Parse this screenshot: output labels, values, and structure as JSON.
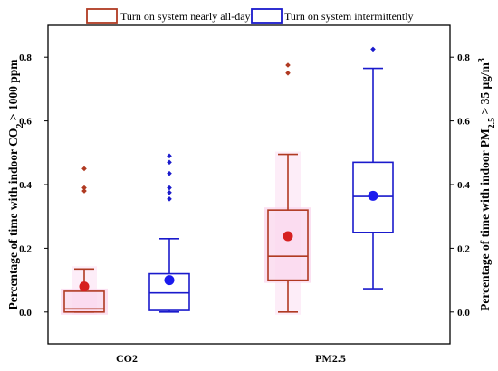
{
  "chart_data": {
    "type": "box",
    "categories": [
      "CO2",
      "PM2.5"
    ],
    "ylabel_left": {
      "main": "Percentage of time with indoor CO",
      "sub": "2",
      "tail": " > 1000 ppm"
    },
    "ylabel_right": {
      "main": "Percentage of time with indoor PM",
      "sub": "2.5",
      "tail": " > 35 μg/m",
      "sup": "3"
    },
    "ylim": [
      -0.1,
      0.9
    ],
    "yticks": [
      0.0,
      0.2,
      0.4,
      0.6,
      0.8
    ],
    "ytick_labels": [
      "0.0",
      "0.2",
      "0.4",
      "0.6",
      "0.8"
    ],
    "legend_position": "top",
    "series": [
      {
        "name": "Turn on system nearly all-day",
        "color": "#b03a22",
        "mean_color": "#d62020",
        "boxes": [
          {
            "category": "CO2",
            "whisker_low": 0.0,
            "q1": 0.0,
            "median": 0.01,
            "q3": 0.065,
            "whisker_high": 0.135,
            "mean": 0.08,
            "outliers": [
              0.38,
              0.39,
              0.45
            ]
          },
          {
            "category": "PM2.5",
            "whisker_low": 0.0,
            "q1": 0.1,
            "median": 0.175,
            "q3": 0.32,
            "whisker_high": 0.495,
            "mean": 0.238,
            "outliers": [
              0.75,
              0.775
            ]
          }
        ]
      },
      {
        "name": "Turn on system intermittently",
        "color": "#1a1acc",
        "mean_color": "#1a1aee",
        "boxes": [
          {
            "category": "CO2",
            "whisker_low": 0.0,
            "q1": 0.005,
            "median": 0.06,
            "q3": 0.12,
            "whisker_high": 0.23,
            "mean": 0.1,
            "outliers": [
              0.355,
              0.375,
              0.39,
              0.435,
              0.47,
              0.49
            ]
          },
          {
            "category": "PM2.5",
            "whisker_low": 0.073,
            "q1": 0.25,
            "median": 0.363,
            "q3": 0.47,
            "whisker_high": 0.765,
            "mean": 0.365,
            "outliers": [
              0.825
            ]
          }
        ]
      }
    ]
  }
}
